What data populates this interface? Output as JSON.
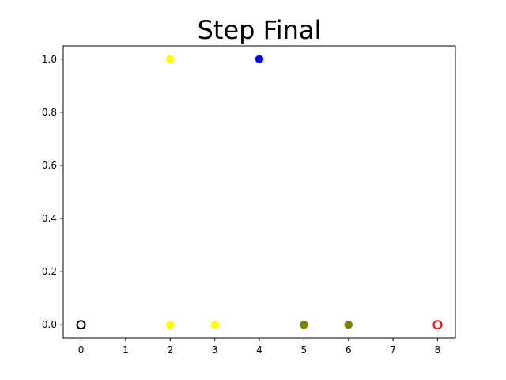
{
  "chart_data": {
    "type": "scatter",
    "title": "Step Final",
    "xlabel": "",
    "ylabel": "",
    "xlim": [
      -0.4,
      8.4
    ],
    "ylim": [
      -0.05,
      1.05
    ],
    "xticks": [
      0,
      1,
      2,
      3,
      4,
      5,
      6,
      7,
      8
    ],
    "xtick_labels": [
      "0",
      "1",
      "2",
      "3",
      "4",
      "5",
      "6",
      "7",
      "8"
    ],
    "yticks": [
      0.0,
      0.2,
      0.4,
      0.6,
      0.8,
      1.0
    ],
    "ytick_labels": [
      "0.0",
      "0.2",
      "0.4",
      "0.6",
      "0.8",
      "1.0"
    ],
    "grid": false,
    "points": [
      {
        "x": 0,
        "y": 0.0,
        "color": "#000000",
        "style": "hollow"
      },
      {
        "x": 2,
        "y": 1.0,
        "color": "#ffff00",
        "style": "filled"
      },
      {
        "x": 2,
        "y": 0.0,
        "color": "#ffff00",
        "style": "filled"
      },
      {
        "x": 3,
        "y": 0.0,
        "color": "#ffff00",
        "style": "filled"
      },
      {
        "x": 4,
        "y": 1.0,
        "color": "#0000ff",
        "style": "filled"
      },
      {
        "x": 5,
        "y": 0.0,
        "color": "#808000",
        "style": "filled"
      },
      {
        "x": 6,
        "y": 0.0,
        "color": "#808000",
        "style": "filled"
      },
      {
        "x": 8,
        "y": 0.0,
        "color": "#ff0000",
        "style": "hollow"
      }
    ]
  }
}
